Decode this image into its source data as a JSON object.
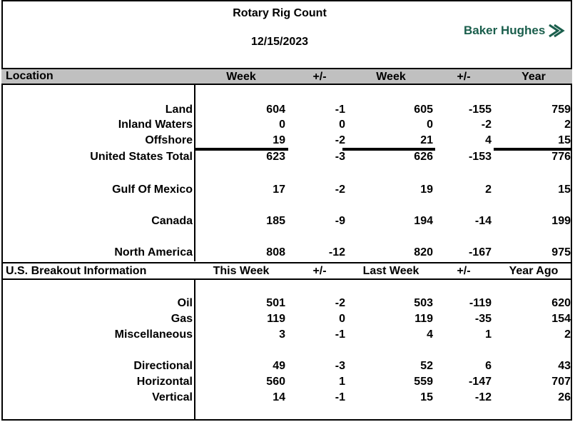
{
  "title": "Rotary Rig Count",
  "date": "12/15/2023",
  "logo_text": "Baker Hughes",
  "colors": {
    "brand": "#1a5e4c",
    "header_band": "#c0c0c0"
  },
  "location_header": {
    "label": "Location",
    "cols": [
      "Week",
      "+/-",
      "Week",
      "+/-",
      "Year"
    ]
  },
  "location_rows": [
    {
      "label": "Land",
      "values": [
        "604",
        "-1",
        "605",
        "-155",
        "759"
      ]
    },
    {
      "label": "Inland Waters",
      "values": [
        "0",
        "0",
        "0",
        "-2",
        "2"
      ]
    },
    {
      "label": "Offshore",
      "values": [
        "19",
        "-2",
        "21",
        "4",
        "15"
      ]
    },
    {
      "label": "United States Total",
      "values": [
        "623",
        "-3",
        "626",
        "-153",
        "776"
      ]
    },
    {
      "label": "Gulf Of Mexico",
      "values": [
        "17",
        "-2",
        "19",
        "2",
        "15"
      ]
    },
    {
      "label": "Canada",
      "values": [
        "185",
        "-9",
        "194",
        "-14",
        "199"
      ]
    },
    {
      "label": "North America",
      "values": [
        "808",
        "-12",
        "820",
        "-167",
        "975"
      ]
    }
  ],
  "breakout_header": {
    "label": "U.S. Breakout Information",
    "cols": [
      "This Week",
      "+/-",
      "Last Week",
      "+/-",
      "Year Ago"
    ]
  },
  "breakout_rows": [
    {
      "label": "Oil",
      "values": [
        "501",
        "-2",
        "503",
        "-119",
        "620"
      ]
    },
    {
      "label": "Gas",
      "values": [
        "119",
        "0",
        "119",
        "-35",
        "154"
      ]
    },
    {
      "label": "Miscellaneous",
      "values": [
        "3",
        "-1",
        "4",
        "1",
        "2"
      ]
    },
    {
      "label": "Directional",
      "values": [
        "49",
        "-3",
        "52",
        "6",
        "43"
      ]
    },
    {
      "label": "Horizontal",
      "values": [
        "560",
        "1",
        "559",
        "-147",
        "707"
      ]
    },
    {
      "label": "Vertical",
      "values": [
        "14",
        "-1",
        "15",
        "-12",
        "26"
      ]
    }
  ]
}
